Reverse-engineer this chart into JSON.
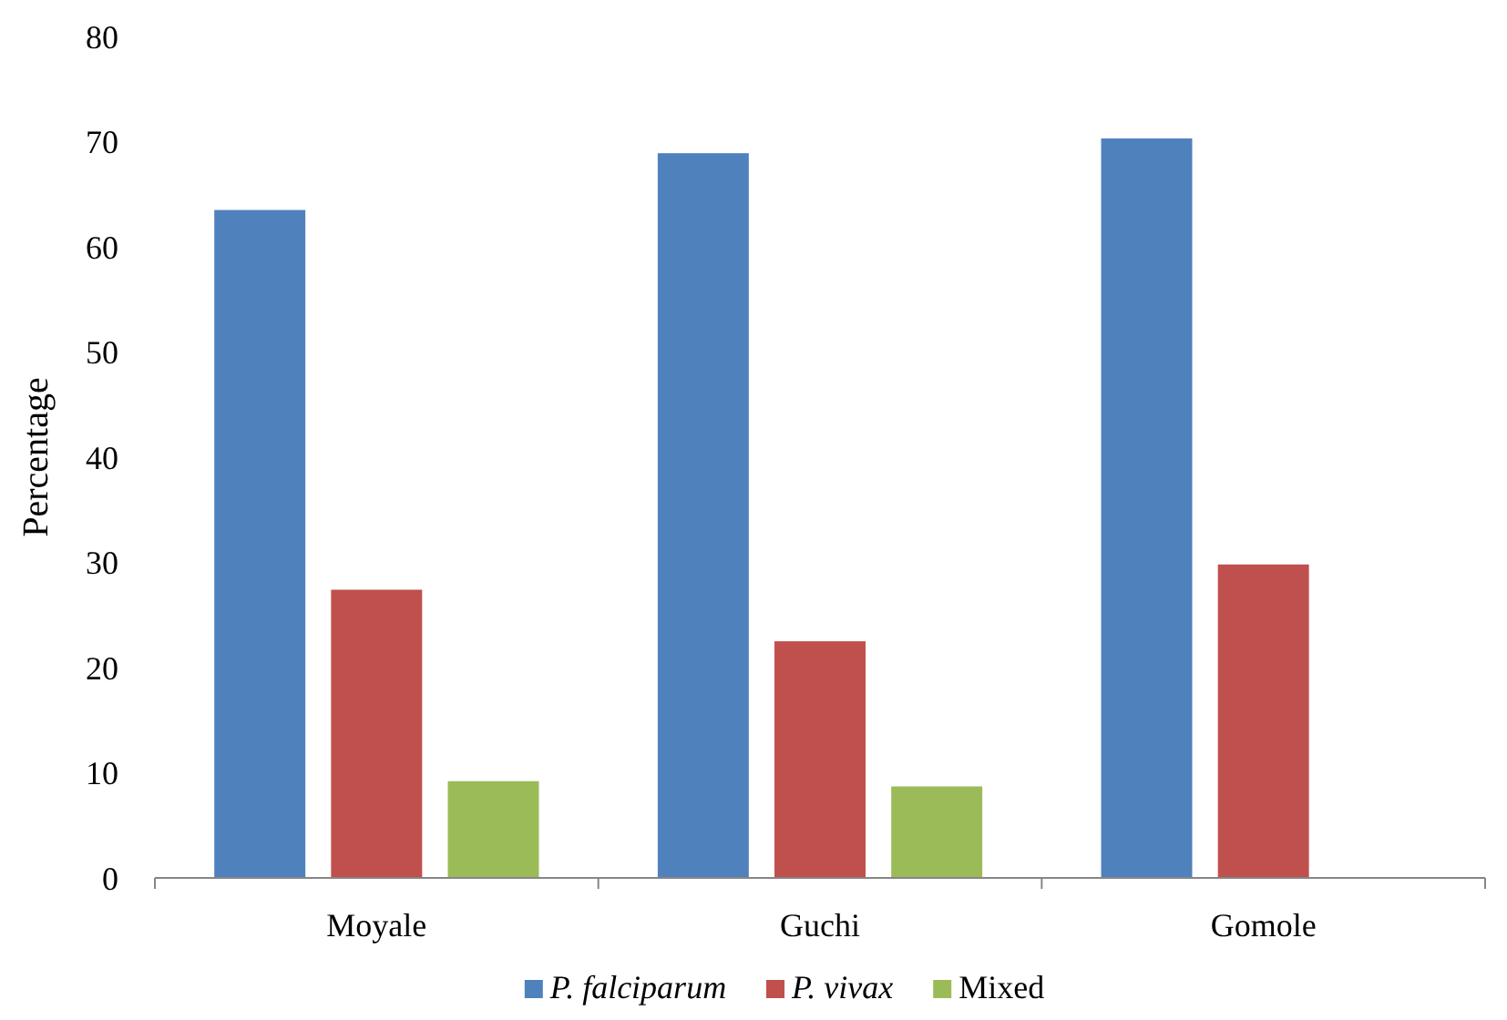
{
  "chart_data": {
    "type": "bar",
    "ylabel": "Percentage",
    "categories": [
      "Moyale",
      "Guchi",
      "Gomole"
    ],
    "series": [
      {
        "name": "P. falciparum",
        "color": "#4f81bd",
        "values": [
          63.5,
          68.9,
          70.3
        ]
      },
      {
        "name": "P. vivax",
        "color": "#c0504d",
        "values": [
          27.4,
          22.5,
          29.8
        ]
      },
      {
        "name": "Mixed",
        "color": "#9bbb59",
        "values": [
          9.2,
          8.7,
          0
        ]
      }
    ],
    "ylim": [
      0,
      80
    ],
    "yticks": [
      0,
      10,
      20,
      30,
      40,
      50,
      60,
      70,
      80
    ],
    "grid": false,
    "legend": "bottom"
  }
}
